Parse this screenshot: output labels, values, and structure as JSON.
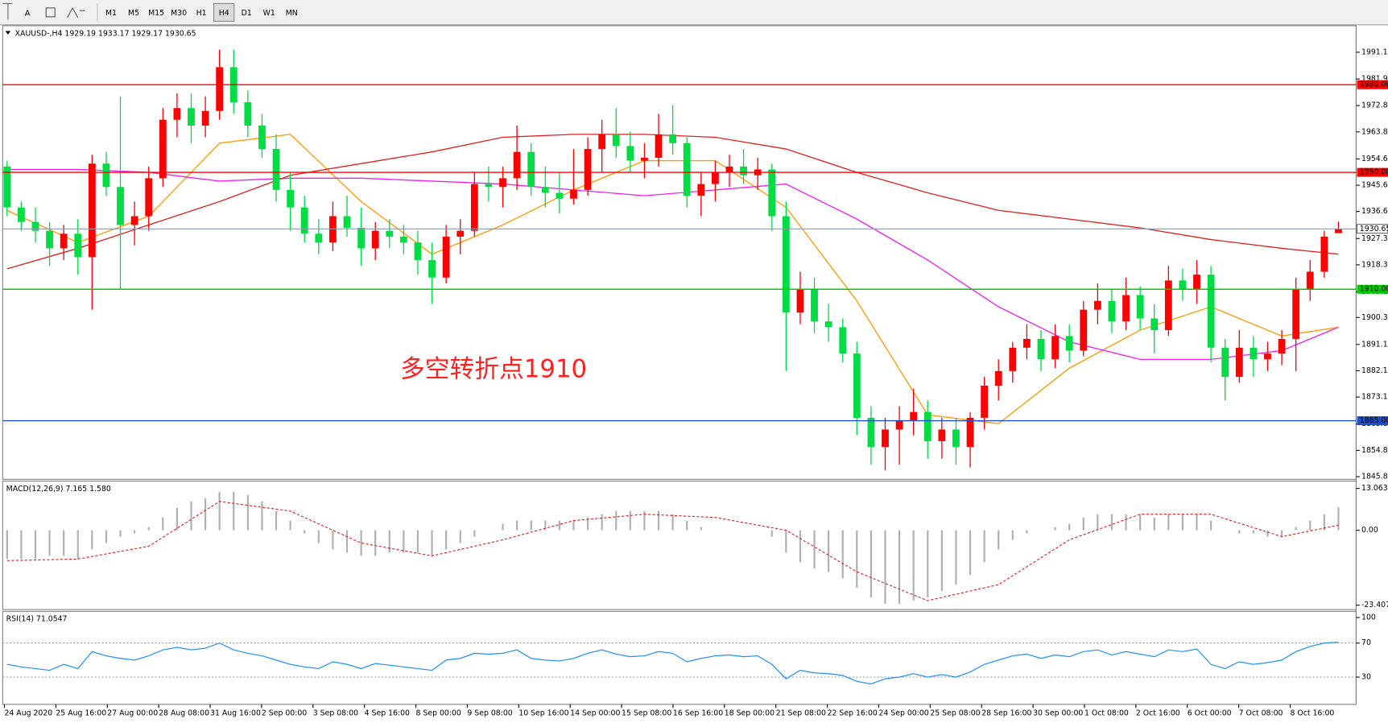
{
  "toolbar": {
    "items": [
      "A"
    ],
    "buttons": [
      "M1",
      "M5",
      "M15",
      "M30",
      "H1",
      "H4",
      "D1",
      "W1",
      "MN"
    ],
    "active": "H4"
  },
  "chart_data": {
    "type": "candlestick",
    "title": "XAUUSD-,H4  1929.19 1933.17 1929.17 1930.65",
    "annotation": "多空转折点1910",
    "up_color": "#ff0000",
    "down_color": "#00dd44",
    "open": [
      1952,
      1938,
      1933,
      1930,
      1924,
      1929,
      1921,
      1953,
      1945,
      1932,
      1935,
      1948,
      1968,
      1972,
      1966,
      1971,
      1986,
      1974,
      1966,
      1958,
      1944,
      1938,
      1929,
      1926,
      1935,
      1931,
      1924,
      1930,
      1928,
      1926,
      1920,
      1914,
      1928,
      1930,
      1946,
      1945,
      1948,
      1957,
      1945,
      1943,
      1941,
      1944,
      1958,
      1963,
      1959,
      1954,
      1955,
      1963,
      1960,
      1942,
      1946,
      1950,
      1952,
      1949,
      1951,
      1935,
      1902,
      1910,
      1899,
      1897,
      1888,
      1866,
      1856,
      1862,
      1865,
      1868,
      1858,
      1862,
      1856,
      1866,
      1877,
      1882,
      1890,
      1893,
      1886,
      1894,
      1889,
      1903,
      1906,
      1899,
      1908,
      1900,
      1896,
      1913,
      1910,
      1915,
      1890,
      1880,
      1890,
      1886,
      1888,
      1893,
      1910,
      1916,
      1929.19
    ],
    "high": [
      1954,
      1940,
      1938,
      1933,
      1932,
      1934,
      1956,
      1957,
      1976,
      1940,
      1952,
      1972,
      1977,
      1977,
      1976,
      1992,
      1992,
      1978,
      1970,
      1963,
      1950,
      1942,
      1934,
      1940,
      1942,
      1938,
      1933,
      1934,
      1932,
      1930,
      1926,
      1932,
      1934,
      1950,
      1952,
      1952,
      1966,
      1960,
      1952,
      1950,
      1958,
      1962,
      1968,
      1972,
      1964,
      1960,
      1970,
      1973,
      1962,
      1950,
      1954,
      1956,
      1958,
      1955,
      1953,
      1940,
      1916,
      1914,
      1905,
      1900,
      1892,
      1870,
      1866,
      1870,
      1876,
      1872,
      1866,
      1866,
      1868,
      1880,
      1886,
      1892,
      1898,
      1896,
      1898,
      1898,
      1906,
      1912,
      1910,
      1914,
      1911,
      1905,
      1918,
      1917,
      1920,
      1918,
      1893,
      1896,
      1894,
      1892,
      1896,
      1914,
      1920,
      1930,
      1933.17
    ],
    "low": [
      1935,
      1930,
      1926,
      1918,
      1920,
      1915,
      1903,
      1942,
      1910,
      1925,
      1930,
      1945,
      1962,
      1960,
      1962,
      1968,
      1970,
      1962,
      1955,
      1940,
      1930,
      1926,
      1922,
      1923,
      1928,
      1918,
      1920,
      1924,
      1922,
      1915,
      1905,
      1912,
      1922,
      1928,
      1940,
      1938,
      1944,
      1942,
      1938,
      1936,
      1939,
      1942,
      1950,
      1955,
      1950,
      1948,
      1952,
      1956,
      1938,
      1935,
      1940,
      1945,
      1946,
      1944,
      1930,
      1882,
      1898,
      1895,
      1892,
      1885,
      1860,
      1850,
      1848,
      1850,
      1860,
      1852,
      1852,
      1850,
      1849,
      1862,
      1872,
      1878,
      1886,
      1882,
      1883,
      1885,
      1887,
      1898,
      1895,
      1896,
      1896,
      1888,
      1894,
      1906,
      1905,
      1885,
      1872,
      1878,
      1880,
      1882,
      1884,
      1882,
      1906,
      1914,
      1929.17
    ],
    "close": [
      1938,
      1933,
      1930,
      1924,
      1929,
      1921,
      1953,
      1945,
      1932,
      1935,
      1948,
      1968,
      1972,
      1966,
      1971,
      1986,
      1974,
      1966,
      1958,
      1944,
      1938,
      1929,
      1926,
      1935,
      1931,
      1924,
      1930,
      1928,
      1926,
      1920,
      1914,
      1928,
      1930,
      1946,
      1945,
      1948,
      1957,
      1945,
      1943,
      1941,
      1944,
      1958,
      1963,
      1959,
      1954,
      1955,
      1963,
      1960,
      1942,
      1946,
      1950,
      1952,
      1949,
      1951,
      1935,
      1902,
      1910,
      1899,
      1897,
      1888,
      1866,
      1856,
      1862,
      1865,
      1868,
      1858,
      1862,
      1856,
      1866,
      1877,
      1882,
      1890,
      1893,
      1886,
      1894,
      1889,
      1903,
      1906,
      1899,
      1908,
      1900,
      1896,
      1913,
      1910,
      1915,
      1890,
      1880,
      1890,
      1886,
      1888,
      1893,
      1910,
      1916,
      1928,
      1930.65
    ],
    "ylim": [
      1844.94,
      1998.98
    ],
    "yticks": [
      {
        "value": 1991.1,
        "label": "1991.10"
      },
      {
        "value": 1981.95,
        "label": "1981.95"
      },
      {
        "value": 1972.85,
        "label": "1972.85"
      },
      {
        "value": 1963.85,
        "label": "1963.85"
      },
      {
        "value": 1954.6,
        "label": "1954.60"
      },
      {
        "value": 1945.6,
        "label": "1945.60"
      },
      {
        "value": 1936.6,
        "label": "1936.60"
      },
      {
        "value": 1927.35,
        "label": "1927.35"
      },
      {
        "value": 1918.35,
        "label": "1918.35"
      },
      {
        "value": 1909.1,
        "label": "1909.10"
      },
      {
        "value": 1900.35,
        "label": "1900.35"
      },
      {
        "value": 1891.1,
        "label": "1891.10"
      },
      {
        "value": 1882.1,
        "label": "1882.10"
      },
      {
        "value": 1873.1,
        "label": "1873.10"
      },
      {
        "value": 1863.85,
        "label": "1863.85"
      },
      {
        "value": 1854.85,
        "label": "1854.85"
      },
      {
        "value": 1845.85,
        "label": "1845.85"
      }
    ],
    "levels": [
      {
        "value": 1980,
        "label": "1980.00",
        "color": "#ff0000"
      },
      {
        "value": 1950,
        "label": "1950.00",
        "color": "#ff0000"
      },
      {
        "value": 1910,
        "label": "1910.00",
        "color": "#00cc00"
      },
      {
        "value": 1865,
        "label": "1865.00",
        "color": "#1f4fd0"
      }
    ],
    "moving_averages": [
      {
        "color": "#ff9900",
        "x": [
          0,
          5,
          10,
          15,
          20,
          25,
          30,
          35,
          40,
          45,
          50,
          55,
          60,
          65,
          70,
          75,
          80,
          85,
          90,
          94
        ],
        "values": [
          1937,
          1926,
          1935,
          1960,
          1963,
          1940,
          1922,
          1932,
          1944,
          1954,
          1954,
          1938,
          1906,
          1867,
          1864,
          1883,
          1896,
          1904,
          1894,
          1897
        ]
      },
      {
        "color": "#ee22ee",
        "x": [
          0,
          5,
          10,
          15,
          20,
          25,
          30,
          35,
          40,
          45,
          50,
          55,
          60,
          65,
          70,
          75,
          80,
          85,
          90,
          94
        ],
        "values": [
          1951,
          1951,
          1950,
          1947,
          1948,
          1948,
          1947,
          1946,
          1944,
          1942,
          1944,
          1946,
          1934,
          1920,
          1904,
          1892,
          1886,
          1886,
          1889,
          1897
        ]
      },
      {
        "color": "#e02020",
        "x": [
          0,
          5,
          10,
          15,
          20,
          25,
          30,
          35,
          40,
          45,
          50,
          55,
          60,
          65,
          70,
          75,
          80,
          85,
          90,
          94
        ],
        "values": [
          1917,
          1924,
          1932,
          1940,
          1949,
          1953,
          1957,
          1962,
          1963,
          1963,
          1962,
          1958,
          1950,
          1943,
          1937,
          1934,
          1931,
          1927,
          1924,
          1922
        ]
      }
    ],
    "time_labels": [
      "24 Aug 2020",
      "25 Aug 16:00",
      "27 Aug 00:00",
      "28 Aug 08:00",
      "31 Aug 16:00",
      "2 Sep 00:00",
      "3 Sep 08:00",
      "4 Sep 16:00",
      "8 Sep 00:00",
      "9 Sep 08:00",
      "10 Sep 16:00",
      "14 Sep 00:00",
      "15 Sep 08:00",
      "16 Sep 16:00",
      "18 Sep 00:00",
      "21 Sep 08:00",
      "22 Sep 16:00",
      "24 Sep 00:00",
      "25 Sep 08:00",
      "28 Sep 16:00",
      "30 Sep 00:00",
      "1 Oct 08:00",
      "2 Oct 16:00",
      "6 Oct 00:00",
      "7 Oct 08:00",
      "8 Oct 16:00"
    ],
    "macd": {
      "title": "MACD(12,26,9) 7.165 1.580",
      "ylim": [
        -24.8,
        14.8
      ],
      "yticks": [
        13.063,
        {
          "value": 0,
          "label": "0.00"
        },
        -23.407
      ],
      "histogram_color": "#b0b0b0",
      "signal_color": "#e02020",
      "histogram": [
        -9,
        -9,
        -9,
        -8,
        -8,
        -9,
        -6,
        -4,
        -2,
        -1,
        1,
        4,
        7,
        9,
        10,
        12,
        12,
        11,
        9,
        6,
        3,
        -1,
        -4,
        -6,
        -7,
        -8,
        -8,
        -7,
        -7,
        -7,
        -8,
        -6,
        -4,
        -2,
        0,
        2,
        3,
        3,
        3,
        3,
        3,
        4,
        5,
        6,
        6,
        6,
        6,
        5,
        3,
        1,
        0,
        0,
        0,
        0,
        -2,
        -7,
        -10,
        -12,
        -13,
        -15,
        -18,
        -21,
        -23,
        -23,
        -22,
        -21,
        -19,
        -17,
        -14,
        -10,
        -6,
        -3,
        -1,
        0,
        1,
        2,
        4,
        5,
        5,
        5,
        5,
        4,
        5,
        5,
        5,
        3,
        0,
        -1,
        -1,
        -2,
        -2,
        1,
        3,
        5,
        7.165
      ],
      "signal_x": [
        0,
        5,
        10,
        15,
        20,
        25,
        30,
        35,
        40,
        45,
        50,
        55,
        60,
        65,
        70,
        75,
        80,
        85,
        90,
        94
      ],
      "signal": [
        -9.5,
        -9,
        -5,
        9,
        6,
        -4,
        -8,
        -3,
        3,
        5,
        4,
        0,
        -13,
        -22,
        -17,
        -3,
        5,
        5,
        -2,
        1.58
      ]
    },
    "rsi": {
      "title": "RSI(14) 71.0547",
      "ylim": [
        0,
        100
      ],
      "yticks": [
        100,
        70,
        30
      ],
      "color": "#1e90ff",
      "values": [
        45,
        42,
        40,
        38,
        45,
        40,
        60,
        55,
        52,
        50,
        55,
        62,
        65,
        62,
        64,
        70,
        62,
        58,
        55,
        50,
        45,
        42,
        40,
        48,
        45,
        40,
        46,
        44,
        42,
        40,
        38,
        50,
        52,
        58,
        57,
        58,
        62,
        52,
        50,
        49,
        52,
        58,
        62,
        57,
        54,
        55,
        60,
        58,
        48,
        52,
        55,
        56,
        54,
        55,
        45,
        28,
        38,
        35,
        34,
        32,
        25,
        22,
        28,
        30,
        34,
        30,
        33,
        30,
        36,
        45,
        50,
        55,
        57,
        52,
        56,
        54,
        60,
        62,
        56,
        60,
        57,
        54,
        62,
        60,
        63,
        45,
        40,
        48,
        45,
        47,
        50,
        60,
        66,
        70,
        71.0547
      ]
    }
  }
}
